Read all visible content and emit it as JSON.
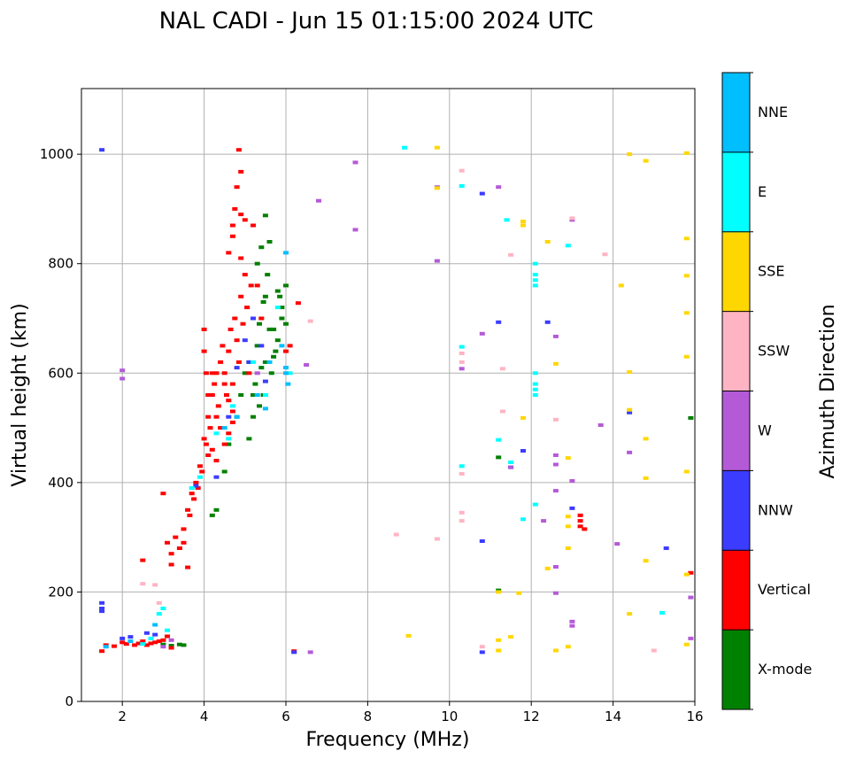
{
  "chart_data": {
    "type": "scatter",
    "title": "NAL CADI - Jun 15 01:15:00 2024 UTC",
    "xlabel": "Frequency (MHz)",
    "ylabel": "Virtual height (km)",
    "xlim": [
      1,
      16
    ],
    "ylim": [
      0,
      1120
    ],
    "xticks": [
      2,
      4,
      6,
      8,
      10,
      12,
      14,
      16
    ],
    "yticks": [
      0,
      200,
      400,
      600,
      800,
      1000
    ],
    "grid": true,
    "colorbar": {
      "label": "Azimuth Direction",
      "categories": [
        "X-mode",
        "Vertical",
        "NNW",
        "W",
        "SSW",
        "SSE",
        "E",
        "NNE"
      ],
      "colors": [
        "#008000",
        "#ff0000",
        "#3c3cff",
        "#b45ad7",
        "#ffb4c3",
        "#ffd700",
        "#00ffff",
        "#00bfff"
      ]
    },
    "series": [
      {
        "name": "X-mode",
        "points": [
          [
            3.0,
            104
          ],
          [
            3.2,
            102
          ],
          [
            3.4,
            104
          ],
          [
            3.5,
            103
          ],
          [
            4.2,
            340
          ],
          [
            4.3,
            350
          ],
          [
            4.5,
            420
          ],
          [
            4.6,
            470
          ],
          [
            4.8,
            520
          ],
          [
            4.9,
            560
          ],
          [
            5.0,
            600
          ],
          [
            5.1,
            620
          ],
          [
            5.2,
            560
          ],
          [
            5.3,
            650
          ],
          [
            5.35,
            690
          ],
          [
            5.4,
            610
          ],
          [
            5.45,
            730
          ],
          [
            5.5,
            620
          ],
          [
            5.55,
            780
          ],
          [
            5.6,
            840
          ],
          [
            5.7,
            680
          ],
          [
            5.8,
            750
          ],
          [
            5.9,
            700
          ],
          [
            6.0,
            690
          ],
          [
            6.0,
            760
          ],
          [
            5.4,
            830
          ],
          [
            5.5,
            888
          ],
          [
            5.2,
            520
          ],
          [
            5.1,
            480
          ],
          [
            5.6,
            680
          ],
          [
            5.65,
            600
          ],
          [
            5.7,
            630
          ],
          [
            5.75,
            640
          ],
          [
            5.8,
            660
          ],
          [
            5.85,
            740
          ],
          [
            5.9,
            720
          ],
          [
            11.2,
            446
          ],
          [
            11.2,
            203
          ],
          [
            15.9,
            518
          ],
          [
            5.3,
            800
          ],
          [
            5.5,
            740
          ],
          [
            5.25,
            580
          ],
          [
            5.35,
            540
          ],
          [
            5.45,
            560
          ]
        ]
      },
      {
        "name": "Vertical",
        "points": [
          [
            1.5,
            92
          ],
          [
            1.6,
            103
          ],
          [
            1.8,
            101
          ],
          [
            2.0,
            108
          ],
          [
            2.1,
            105
          ],
          [
            2.3,
            103
          ],
          [
            2.4,
            106
          ],
          [
            2.5,
            110
          ],
          [
            2.6,
            103
          ],
          [
            2.7,
            106
          ],
          [
            2.8,
            108
          ],
          [
            2.9,
            110
          ],
          [
            3.0,
            112
          ],
          [
            3.1,
            119
          ],
          [
            3.2,
            98
          ],
          [
            2.5,
            258
          ],
          [
            3.1,
            290
          ],
          [
            3.2,
            270
          ],
          [
            3.3,
            300
          ],
          [
            3.4,
            280
          ],
          [
            3.5,
            290
          ],
          [
            3.5,
            315
          ],
          [
            3.6,
            350
          ],
          [
            3.65,
            340
          ],
          [
            3.7,
            380
          ],
          [
            3.75,
            370
          ],
          [
            3.8,
            400
          ],
          [
            3.85,
            390
          ],
          [
            3.9,
            430
          ],
          [
            3.95,
            420
          ],
          [
            4.0,
            480
          ],
          [
            4.05,
            470
          ],
          [
            4.1,
            520
          ],
          [
            4.15,
            500
          ],
          [
            4.2,
            560
          ],
          [
            4.25,
            580
          ],
          [
            4.3,
            600
          ],
          [
            4.35,
            540
          ],
          [
            4.4,
            620
          ],
          [
            4.45,
            650
          ],
          [
            4.5,
            600
          ],
          [
            4.55,
            560
          ],
          [
            4.6,
            640
          ],
          [
            4.65,
            680
          ],
          [
            4.7,
            580
          ],
          [
            4.75,
            700
          ],
          [
            4.8,
            660
          ],
          [
            4.85,
            620
          ],
          [
            4.9,
            740
          ],
          [
            4.95,
            690
          ],
          [
            5.0,
            780
          ],
          [
            5.05,
            720
          ],
          [
            5.1,
            600
          ],
          [
            5.15,
            760
          ],
          [
            4.6,
            820
          ],
          [
            4.7,
            850
          ],
          [
            4.75,
            900
          ],
          [
            4.8,
            940
          ],
          [
            4.85,
            1008
          ],
          [
            4.9,
            968
          ],
          [
            4.7,
            870
          ],
          [
            4.9,
            890
          ],
          [
            5.0,
            880
          ],
          [
            5.2,
            870
          ],
          [
            5.3,
            760
          ],
          [
            5.4,
            700
          ],
          [
            4.9,
            810
          ],
          [
            6.0,
            640
          ],
          [
            6.1,
            650
          ],
          [
            6.3,
            728
          ],
          [
            4.1,
            450
          ],
          [
            4.2,
            460
          ],
          [
            4.3,
            520
          ],
          [
            4.4,
            500
          ],
          [
            4.5,
            470
          ],
          [
            4.6,
            490
          ],
          [
            4.7,
            510
          ],
          [
            4.3,
            440
          ],
          [
            4.05,
            600
          ],
          [
            4.0,
            640
          ],
          [
            4.0,
            680
          ],
          [
            4.1,
            560
          ],
          [
            4.2,
            600
          ],
          [
            4.5,
            580
          ],
          [
            4.6,
            550
          ],
          [
            4.7,
            530
          ],
          [
            13.2,
            340
          ],
          [
            13.2,
            330
          ],
          [
            13.2,
            320
          ],
          [
            13.3,
            315
          ],
          [
            15.9,
            235
          ],
          [
            6.2,
            92
          ],
          [
            3.0,
            380
          ],
          [
            3.2,
            250
          ],
          [
            3.6,
            245
          ]
        ]
      },
      {
        "name": "NNW",
        "points": [
          [
            1.5,
            1008
          ],
          [
            1.5,
            180
          ],
          [
            1.5,
            170
          ],
          [
            1.5,
            165
          ],
          [
            2.0,
            115
          ],
          [
            2.2,
            118
          ],
          [
            2.6,
            125
          ],
          [
            2.8,
            122
          ],
          [
            3.8,
            394
          ],
          [
            4.3,
            410
          ],
          [
            4.6,
            520
          ],
          [
            4.8,
            610
          ],
          [
            5.0,
            660
          ],
          [
            5.2,
            700
          ],
          [
            5.4,
            650
          ],
          [
            5.5,
            585
          ],
          [
            5.1,
            620
          ],
          [
            6.2,
            90
          ],
          [
            10.8,
            293
          ],
          [
            10.8,
            928
          ],
          [
            10.8,
            90
          ],
          [
            11.2,
            693
          ],
          [
            11.5,
            428
          ],
          [
            11.8,
            458
          ],
          [
            12.4,
            693
          ],
          [
            13.0,
            353
          ],
          [
            14.4,
            528
          ],
          [
            15.3,
            280
          ]
        ]
      },
      {
        "name": "W",
        "points": [
          [
            2.0,
            605
          ],
          [
            2.0,
            590
          ],
          [
            3.0,
            100
          ],
          [
            3.2,
            112
          ],
          [
            5.3,
            600
          ],
          [
            6.5,
            615
          ],
          [
            6.8,
            915
          ],
          [
            6.6,
            90
          ],
          [
            7.7,
            862
          ],
          [
            7.7,
            985
          ],
          [
            9.7,
            805
          ],
          [
            9.7,
            940
          ],
          [
            10.3,
            608
          ],
          [
            10.8,
            672
          ],
          [
            11.2,
            940
          ],
          [
            11.5,
            428
          ],
          [
            12.3,
            330
          ],
          [
            12.6,
            667
          ],
          [
            12.6,
            450
          ],
          [
            12.6,
            433
          ],
          [
            12.6,
            385
          ],
          [
            12.6,
            246
          ],
          [
            12.6,
            198
          ],
          [
            13.0,
            880
          ],
          [
            13.0,
            403
          ],
          [
            13.0,
            146
          ],
          [
            13.0,
            138
          ],
          [
            13.7,
            505
          ],
          [
            14.4,
            455
          ],
          [
            14.1,
            288
          ],
          [
            15.9,
            190
          ],
          [
            15.9,
            115
          ]
        ]
      },
      {
        "name": "SSW",
        "points": [
          [
            2.5,
            215
          ],
          [
            2.8,
            213
          ],
          [
            2.9,
            180
          ],
          [
            6.6,
            695
          ],
          [
            8.7,
            305
          ],
          [
            9.7,
            297
          ],
          [
            10.3,
            970
          ],
          [
            10.3,
            636
          ],
          [
            10.3,
            620
          ],
          [
            10.3,
            416
          ],
          [
            10.3,
            345
          ],
          [
            10.3,
            330
          ],
          [
            10.8,
            100
          ],
          [
            11.3,
            608
          ],
          [
            11.3,
            530
          ],
          [
            11.5,
            816
          ],
          [
            12.6,
            515
          ],
          [
            13.0,
            883
          ],
          [
            13.8,
            817
          ],
          [
            15.0,
            93
          ]
        ]
      },
      {
        "name": "SSE",
        "points": [
          [
            9.0,
            120
          ],
          [
            9.7,
            1012
          ],
          [
            9.7,
            938
          ],
          [
            11.2,
            112
          ],
          [
            11.2,
            93
          ],
          [
            11.2,
            200
          ],
          [
            11.5,
            118
          ],
          [
            11.7,
            198
          ],
          [
            11.8,
            518
          ],
          [
            11.8,
            877
          ],
          [
            11.8,
            870
          ],
          [
            12.4,
            840
          ],
          [
            12.4,
            243
          ],
          [
            12.6,
            617
          ],
          [
            12.6,
            93
          ],
          [
            12.9,
            445
          ],
          [
            12.9,
            338
          ],
          [
            12.9,
            320
          ],
          [
            12.9,
            280
          ],
          [
            12.9,
            100
          ],
          [
            14.4,
            1000
          ],
          [
            14.4,
            602
          ],
          [
            14.4,
            533
          ],
          [
            14.4,
            160
          ],
          [
            14.2,
            760
          ],
          [
            14.8,
            988
          ],
          [
            14.8,
            480
          ],
          [
            14.8,
            408
          ],
          [
            14.8,
            257
          ],
          [
            15.8,
            1002
          ],
          [
            15.8,
            846
          ],
          [
            15.8,
            778
          ],
          [
            15.8,
            710
          ],
          [
            15.8,
            630
          ],
          [
            15.8,
            420
          ],
          [
            15.8,
            232
          ],
          [
            15.8,
            104
          ]
        ]
      },
      {
        "name": "E",
        "points": [
          [
            2.5,
            105
          ],
          [
            2.7,
            115
          ],
          [
            2.9,
            160
          ],
          [
            3.0,
            170
          ],
          [
            3.1,
            130
          ],
          [
            3.7,
            390
          ],
          [
            3.9,
            410
          ],
          [
            4.3,
            490
          ],
          [
            4.6,
            480
          ],
          [
            4.7,
            540
          ],
          [
            5.2,
            620
          ],
          [
            5.5,
            560
          ],
          [
            5.8,
            720
          ],
          [
            6.1,
            600
          ],
          [
            8.9,
            1012
          ],
          [
            10.3,
            942
          ],
          [
            10.3,
            648
          ],
          [
            10.3,
            430
          ],
          [
            11.4,
            880
          ],
          [
            11.5,
            437
          ],
          [
            11.8,
            333
          ],
          [
            12.1,
            800
          ],
          [
            12.1,
            780
          ],
          [
            12.1,
            770
          ],
          [
            12.1,
            760
          ],
          [
            12.1,
            600
          ],
          [
            12.1,
            580
          ],
          [
            12.1,
            570
          ],
          [
            12.1,
            560
          ],
          [
            12.1,
            360
          ],
          [
            12.9,
            833
          ],
          [
            15.2,
            162
          ],
          [
            11.2,
            478
          ]
        ]
      },
      {
        "name": "NNE",
        "points": [
          [
            1.6,
            100
          ],
          [
            2.2,
            110
          ],
          [
            2.8,
            140
          ],
          [
            4.5,
            500
          ],
          [
            4.8,
            520
          ],
          [
            5.3,
            560
          ],
          [
            5.5,
            535
          ],
          [
            5.6,
            620
          ],
          [
            5.9,
            650
          ],
          [
            6.0,
            610
          ],
          [
            6.0,
            820
          ],
          [
            6.05,
            580
          ],
          [
            6.0,
            600
          ]
        ]
      }
    ]
  }
}
